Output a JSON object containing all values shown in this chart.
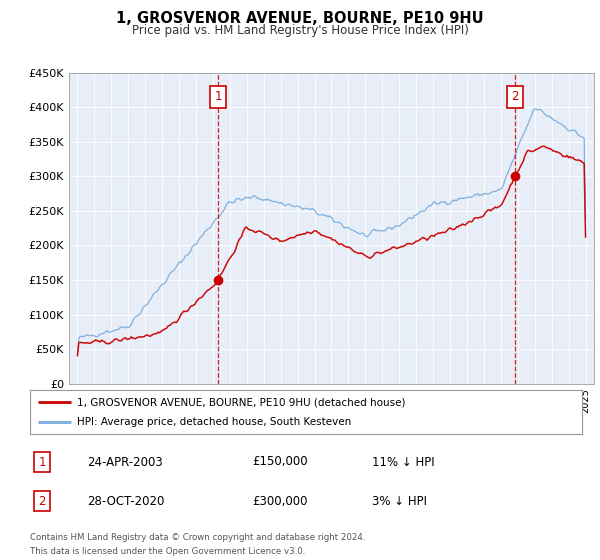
{
  "title": "1, GROSVENOR AVENUE, BOURNE, PE10 9HU",
  "subtitle": "Price paid vs. HM Land Registry's House Price Index (HPI)",
  "legend_line1": "1, GROSVENOR AVENUE, BOURNE, PE10 9HU (detached house)",
  "legend_line2": "HPI: Average price, detached house, South Kesteven",
  "red_line_color": "#cc0000",
  "blue_line_color": "#7aaddc",
  "annotation1_date": "24-APR-2003",
  "annotation1_price": "£150,000",
  "annotation1_hpi": "11% ↓ HPI",
  "annotation2_date": "28-OCT-2020",
  "annotation2_price": "£300,000",
  "annotation2_hpi": "3% ↓ HPI",
  "sale1_year": 2003.3,
  "sale1_value": 150000,
  "sale2_year": 2020.83,
  "sale2_value": 300000,
  "ylim": [
    0,
    450000
  ],
  "xlim_start": 1994.5,
  "xlim_end": 2025.5,
  "yticks": [
    0,
    50000,
    100000,
    150000,
    200000,
    250000,
    300000,
    350000,
    400000,
    450000
  ],
  "ytick_labels": [
    "£0",
    "£50K",
    "£100K",
    "£150K",
    "£200K",
    "£250K",
    "£300K",
    "£350K",
    "£400K",
    "£450K"
  ],
  "plot_background": "#e8eef8",
  "footnote": "Contains HM Land Registry data © Crown copyright and database right 2024.\nThis data is licensed under the Open Government Licence v3.0."
}
